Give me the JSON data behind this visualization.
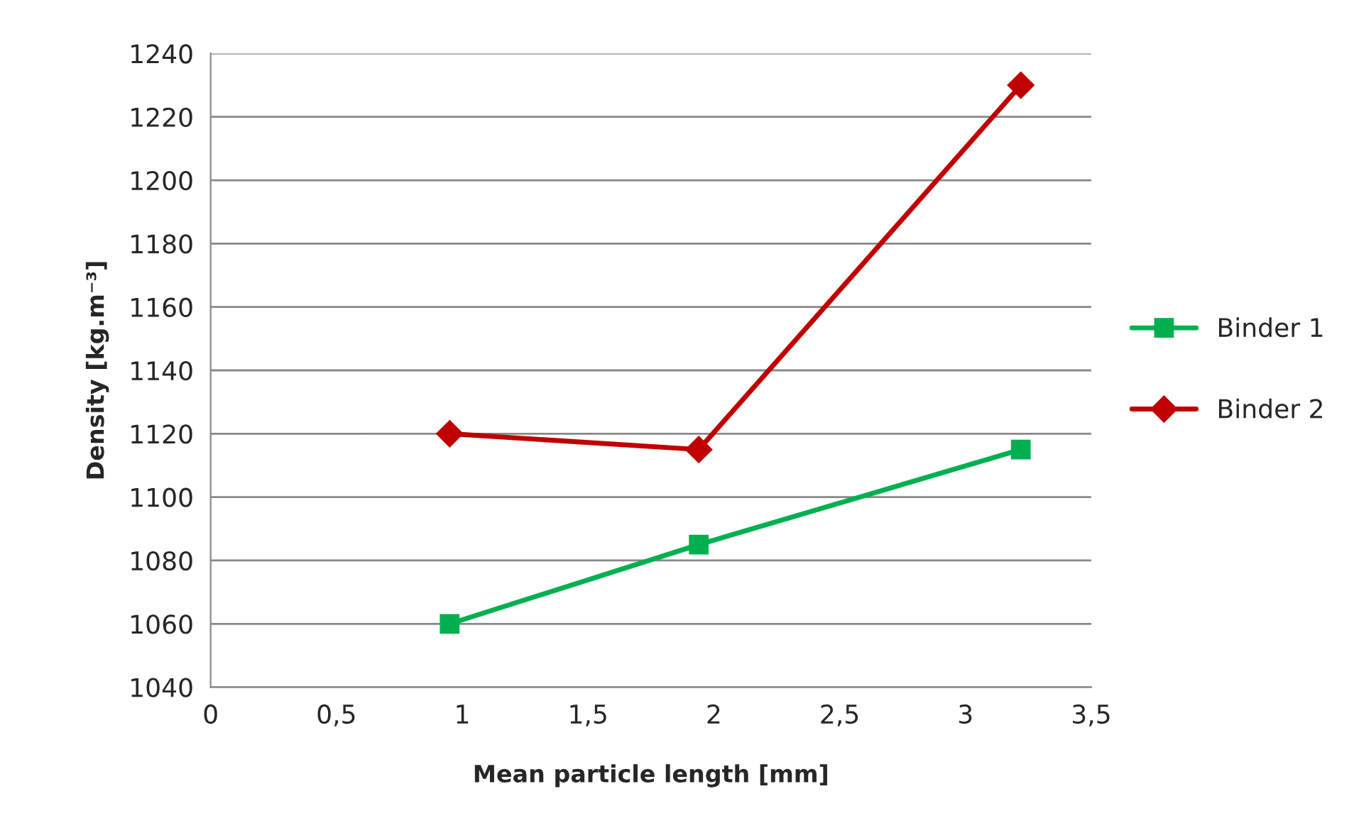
{
  "chart_data": {
    "type": "line",
    "xlabel": "Mean particle length [mm]",
    "ylabel": "Density [kg.m⁻³]",
    "xlim": [
      0,
      3.5
    ],
    "xticks": [
      {
        "value": 0,
        "label": "0"
      },
      {
        "value": 0.5,
        "label": "0,5"
      },
      {
        "value": 1,
        "label": "1"
      },
      {
        "value": 1.5,
        "label": "1,5"
      },
      {
        "value": 2,
        "label": "2"
      },
      {
        "value": 2.5,
        "label": "2,5"
      },
      {
        "value": 3,
        "label": "3"
      },
      {
        "value": 3.5,
        "label": "3,5"
      }
    ],
    "ylim": [
      1040,
      1240
    ],
    "yticks": [
      1040,
      1060,
      1080,
      1100,
      1120,
      1140,
      1160,
      1180,
      1200,
      1220,
      1240
    ],
    "grid": "y",
    "legend": "right",
    "line_style": "solid",
    "series": [
      {
        "name": "Binder 1",
        "color": "#00b050",
        "marker": "square",
        "x": [
          0.95,
          1.94,
          3.22
        ],
        "values": [
          1060,
          1085,
          1115
        ]
      },
      {
        "name": "Binder 2",
        "color": "#c00000",
        "marker": "diamond",
        "x": [
          0.95,
          1.94,
          3.22
        ],
        "values": [
          1120,
          1115,
          1230
        ]
      }
    ]
  }
}
